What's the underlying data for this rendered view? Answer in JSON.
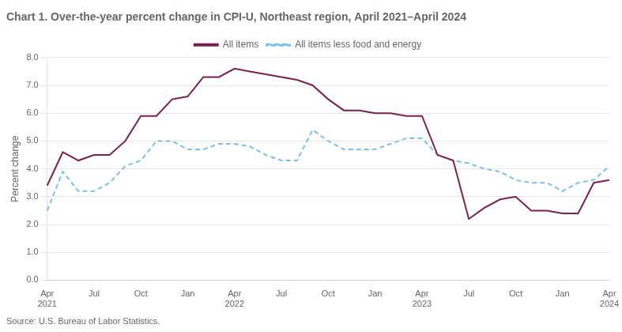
{
  "chart_data": {
    "type": "line",
    "title": "Chart 1. Over-the-year percent change in CPI-U, Northeast region, April 2021–April 2024",
    "ylabel": "Percent change",
    "annotations": [
      "Source: U.S. Bureau of Labor Statistics."
    ],
    "categories": [
      "Apr\n2021",
      null,
      null,
      "Jul",
      null,
      null,
      "Oct",
      null,
      null,
      "Jan",
      null,
      null,
      "Apr\n2022",
      null,
      null,
      "Jul",
      null,
      null,
      "Oct",
      null,
      null,
      "Jan",
      null,
      null,
      "Apr\n2023",
      null,
      null,
      "Jul",
      null,
      null,
      "Oct",
      null,
      null,
      "Jan",
      null,
      null,
      "Apr\n2024"
    ],
    "series": [
      {
        "name": "All items",
        "color": "#7B2150",
        "line_style": "solid",
        "values": [
          3.4,
          4.6,
          4.3,
          4.5,
          4.5,
          5.0,
          5.9,
          5.9,
          6.5,
          6.6,
          7.3,
          7.3,
          7.6,
          7.5,
          7.4,
          7.3,
          7.2,
          7.0,
          6.5,
          6.1,
          6.1,
          6.0,
          6.0,
          5.9,
          5.9,
          4.5,
          4.3,
          2.2,
          2.6,
          2.9,
          3.0,
          2.5,
          2.5,
          2.4,
          2.4,
          3.5,
          3.6
        ]
      },
      {
        "name": "All items less food and energy",
        "color": "#7BBFEA",
        "line_style": "dashed",
        "values": [
          2.5,
          3.9,
          3.2,
          3.2,
          3.5,
          4.1,
          4.3,
          5.0,
          5.0,
          4.7,
          4.7,
          4.9,
          4.9,
          4.8,
          4.5,
          4.3,
          4.3,
          5.4,
          5.0,
          4.7,
          4.7,
          4.7,
          4.9,
          5.1,
          5.1,
          4.5,
          4.3,
          4.2,
          4.0,
          3.9,
          3.6,
          3.5,
          3.5,
          3.2,
          3.5,
          3.6,
          4.1
        ]
      }
    ],
    "ylim": [
      0.0,
      8.0
    ],
    "yticks": [
      {
        "value": 0,
        "label": "0.0"
      },
      {
        "value": 1,
        "label": "1.0"
      },
      {
        "value": 2,
        "label": "2.0"
      },
      {
        "value": 3,
        "label": "3.0"
      },
      {
        "value": 4,
        "label": "4.0"
      },
      {
        "value": 5,
        "label": "5.0"
      },
      {
        "value": 6,
        "label": "6.0"
      },
      {
        "value": 7,
        "label": "7.0"
      },
      {
        "value": 8,
        "label": "8.0"
      }
    ],
    "grid": true,
    "legend": "top"
  }
}
